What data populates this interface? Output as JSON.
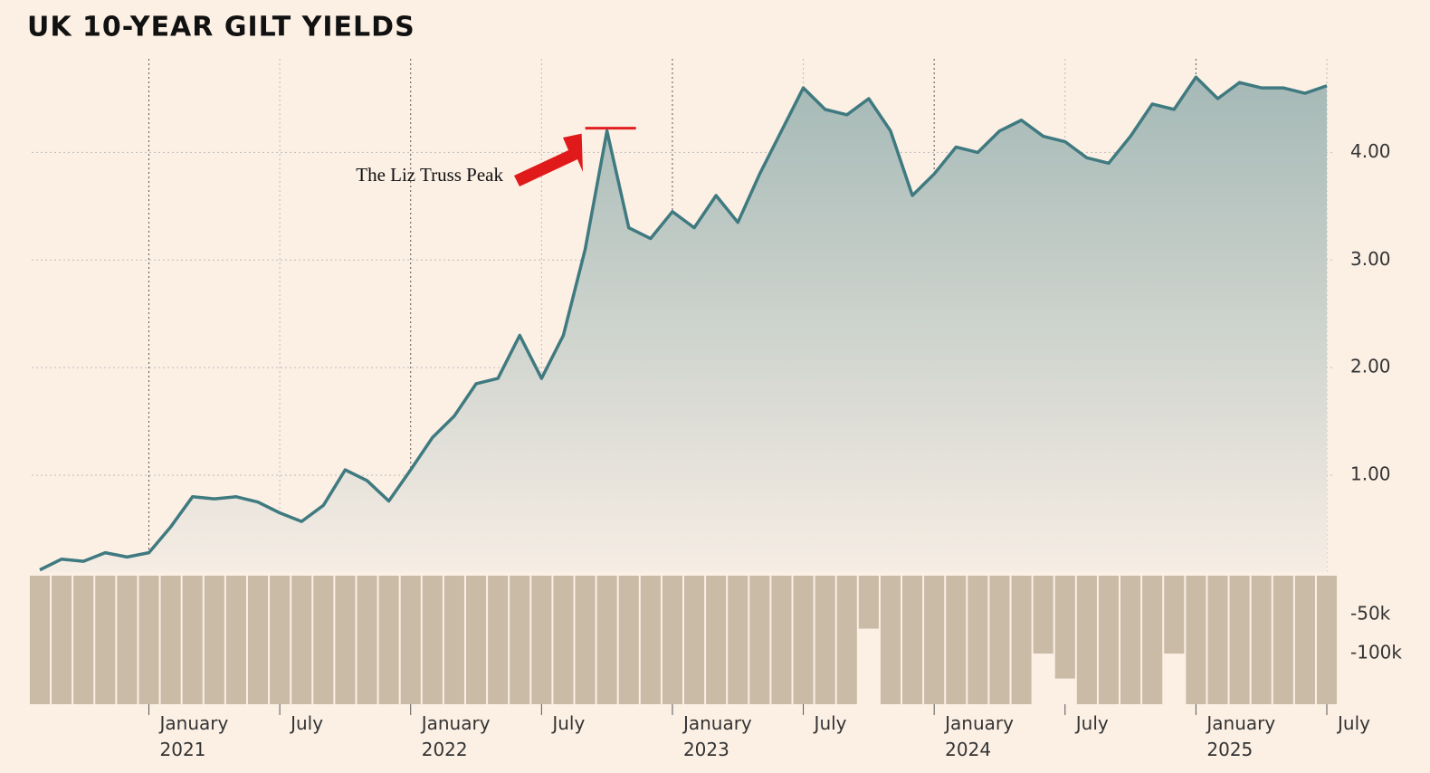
{
  "chart_data": [
    {
      "type": "area",
      "title": "UK 10-YEAR GILT YIELDS",
      "annotation": "The Liz Truss Peak",
      "annotation_index": 26,
      "x": [
        "2020-08",
        "2020-09",
        "2020-10",
        "2020-11",
        "2020-12",
        "2021-01",
        "2021-02",
        "2021-03",
        "2021-04",
        "2021-05",
        "2021-06",
        "2021-07",
        "2021-08",
        "2021-09",
        "2021-10",
        "2021-11",
        "2021-12",
        "2022-01",
        "2022-02",
        "2022-03",
        "2022-04",
        "2022-05",
        "2022-06",
        "2022-07",
        "2022-08",
        "2022-09",
        "2022-10",
        "2022-11",
        "2022-12",
        "2023-01",
        "2023-02",
        "2023-03",
        "2023-04",
        "2023-05",
        "2023-06",
        "2023-07",
        "2023-08",
        "2023-09",
        "2023-10",
        "2023-11",
        "2023-12",
        "2024-01",
        "2024-02",
        "2024-03",
        "2024-04",
        "2024-05",
        "2024-06",
        "2024-07",
        "2024-08",
        "2024-09",
        "2024-10",
        "2024-11",
        "2024-12",
        "2025-01",
        "2025-02",
        "2025-03",
        "2025-04",
        "2025-05",
        "2025-06",
        "2025-07"
      ],
      "series": [
        {
          "name": "UK 10-year gilt yield",
          "color": "#3f7a80",
          "values": [
            0.12,
            0.22,
            0.2,
            0.28,
            0.24,
            0.28,
            0.52,
            0.8,
            0.78,
            0.8,
            0.75,
            0.65,
            0.57,
            0.72,
            1.05,
            0.95,
            0.76,
            1.05,
            1.35,
            1.55,
            1.85,
            1.9,
            2.3,
            1.9,
            2.3,
            3.1,
            4.2,
            3.3,
            3.2,
            3.45,
            3.3,
            3.6,
            3.35,
            3.8,
            4.2,
            4.6,
            4.4,
            4.35,
            4.5,
            4.2,
            3.6,
            3.8,
            4.05,
            4.0,
            4.2,
            4.3,
            4.15,
            4.1,
            3.95,
            3.9,
            4.15,
            4.45,
            4.4,
            4.7,
            4.5,
            4.65,
            4.6,
            4.6,
            4.55,
            4.62
          ]
        }
      ],
      "xlim": [
        "2020-08",
        "2025-07"
      ],
      "xticks": [
        {
          "value": "2021-01",
          "label": "January 2021"
        },
        {
          "value": "2021-07",
          "label": "July"
        },
        {
          "value": "2022-01",
          "label": "January 2022"
        },
        {
          "value": "2022-07",
          "label": "July"
        },
        {
          "value": "2023-01",
          "label": "January 2023"
        },
        {
          "value": "2023-07",
          "label": "July"
        },
        {
          "value": "2024-01",
          "label": "January 2024"
        },
        {
          "value": "2024-07",
          "label": "July"
        },
        {
          "value": "2025-01",
          "label": "January 2025"
        },
        {
          "value": "2025-07",
          "label": "July"
        }
      ],
      "ylim": [
        0.1,
        4.87
      ],
      "yticks": [
        {
          "value": 1,
          "label": "1.00"
        },
        {
          "value": 2,
          "label": "2.00"
        },
        {
          "value": 3,
          "label": "3.00"
        },
        {
          "value": 4,
          "label": "4.00"
        }
      ],
      "grid": true
    },
    {
      "type": "bar",
      "color": "#c9bba6",
      "values": [
        -165000,
        -165000,
        -165000,
        -165000,
        -165000,
        -165000,
        -165000,
        -165000,
        -165000,
        -165000,
        -165000,
        -165000,
        -165000,
        -165000,
        -165000,
        -165000,
        -165000,
        -165000,
        -165000,
        -165000,
        -165000,
        -165000,
        -165000,
        -165000,
        -165000,
        -165000,
        -165000,
        -165000,
        -165000,
        -165000,
        -165000,
        -165000,
        -165000,
        -165000,
        -165000,
        -165000,
        -165000,
        -165000,
        -68000,
        -165000,
        -165000,
        -165000,
        -165000,
        -165000,
        -165000,
        -165000,
        -100000,
        -132000,
        -165000,
        -165000,
        -165000,
        -165000,
        -100000,
        -165000,
        -165000,
        -165000,
        -165000,
        -165000,
        -165000,
        -165000
      ],
      "ylim": [
        -165000,
        0
      ],
      "yticks": [
        {
          "value": -50000,
          "label": "-50k"
        },
        {
          "value": -100000,
          "label": "-100k"
        }
      ]
    }
  ]
}
